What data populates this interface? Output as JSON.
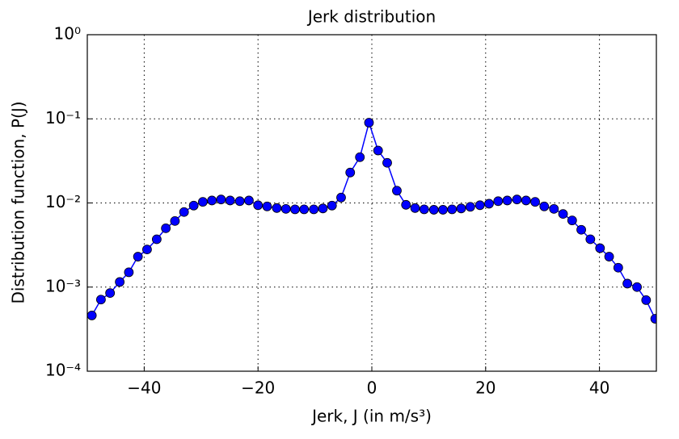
{
  "chart_data": {
    "type": "line",
    "title": "Jerk distribution",
    "xlabel": "Jerk, J (in m/s³)",
    "ylabel": "Distribution function, P(J)",
    "x": [
      -49.2,
      -47.6,
      -46.0,
      -44.3,
      -42.7,
      -41.1,
      -39.5,
      -37.8,
      -36.2,
      -34.6,
      -33.0,
      -31.3,
      -29.7,
      -28.1,
      -26.5,
      -24.9,
      -23.2,
      -21.6,
      -20.0,
      -18.4,
      -16.7,
      -15.1,
      -13.5,
      -11.9,
      -10.2,
      -8.6,
      -7.0,
      -5.4,
      -3.8,
      -2.1,
      -0.5,
      1.1,
      2.7,
      4.4,
      6.0,
      7.6,
      9.2,
      10.9,
      12.5,
      14.1,
      15.7,
      17.3,
      19.0,
      20.6,
      22.2,
      23.8,
      25.5,
      27.1,
      28.7,
      30.3,
      32.0,
      33.6,
      35.2,
      36.8,
      38.4,
      40.1,
      41.7,
      43.3,
      44.9,
      46.6,
      48.2,
      49.8
    ],
    "series": [
      {
        "name": "P(J)",
        "color": "#0000ff",
        "values": [
          0.00046,
          0.00071,
          0.00085,
          0.00115,
          0.0015,
          0.0023,
          0.0028,
          0.0037,
          0.005,
          0.0061,
          0.0078,
          0.0093,
          0.0103,
          0.0107,
          0.011,
          0.0107,
          0.0105,
          0.0107,
          0.0094,
          0.0091,
          0.0087,
          0.0085,
          0.0084,
          0.0084,
          0.0084,
          0.0086,
          0.0093,
          0.0116,
          0.023,
          0.035,
          0.09,
          0.042,
          0.03,
          0.014,
          0.0095,
          0.0087,
          0.0084,
          0.0083,
          0.0083,
          0.0084,
          0.0086,
          0.009,
          0.0094,
          0.0098,
          0.0105,
          0.0107,
          0.011,
          0.0107,
          0.0103,
          0.0091,
          0.0085,
          0.0074,
          0.0062,
          0.0048,
          0.0037,
          0.0029,
          0.0023,
          0.0017,
          0.0011,
          0.001,
          0.0007,
          0.00042
        ]
      }
    ],
    "xlim": [
      -50,
      50
    ],
    "ylim": [
      0.0001,
      1
    ],
    "yscale": "log",
    "xticks": [
      {
        "value": -40,
        "label": "−40"
      },
      {
        "value": -20,
        "label": "−20"
      },
      0,
      20,
      40
    ],
    "yticks": [
      {
        "value": 0.0001,
        "label": "10⁻⁴"
      },
      {
        "value": 0.001,
        "label": "10⁻³"
      },
      {
        "value": 0.01,
        "label": "10⁻²"
      },
      {
        "value": 0.1,
        "label": "10⁻¹"
      },
      {
        "value": 1,
        "label": "10⁰"
      }
    ],
    "grid": true
  }
}
